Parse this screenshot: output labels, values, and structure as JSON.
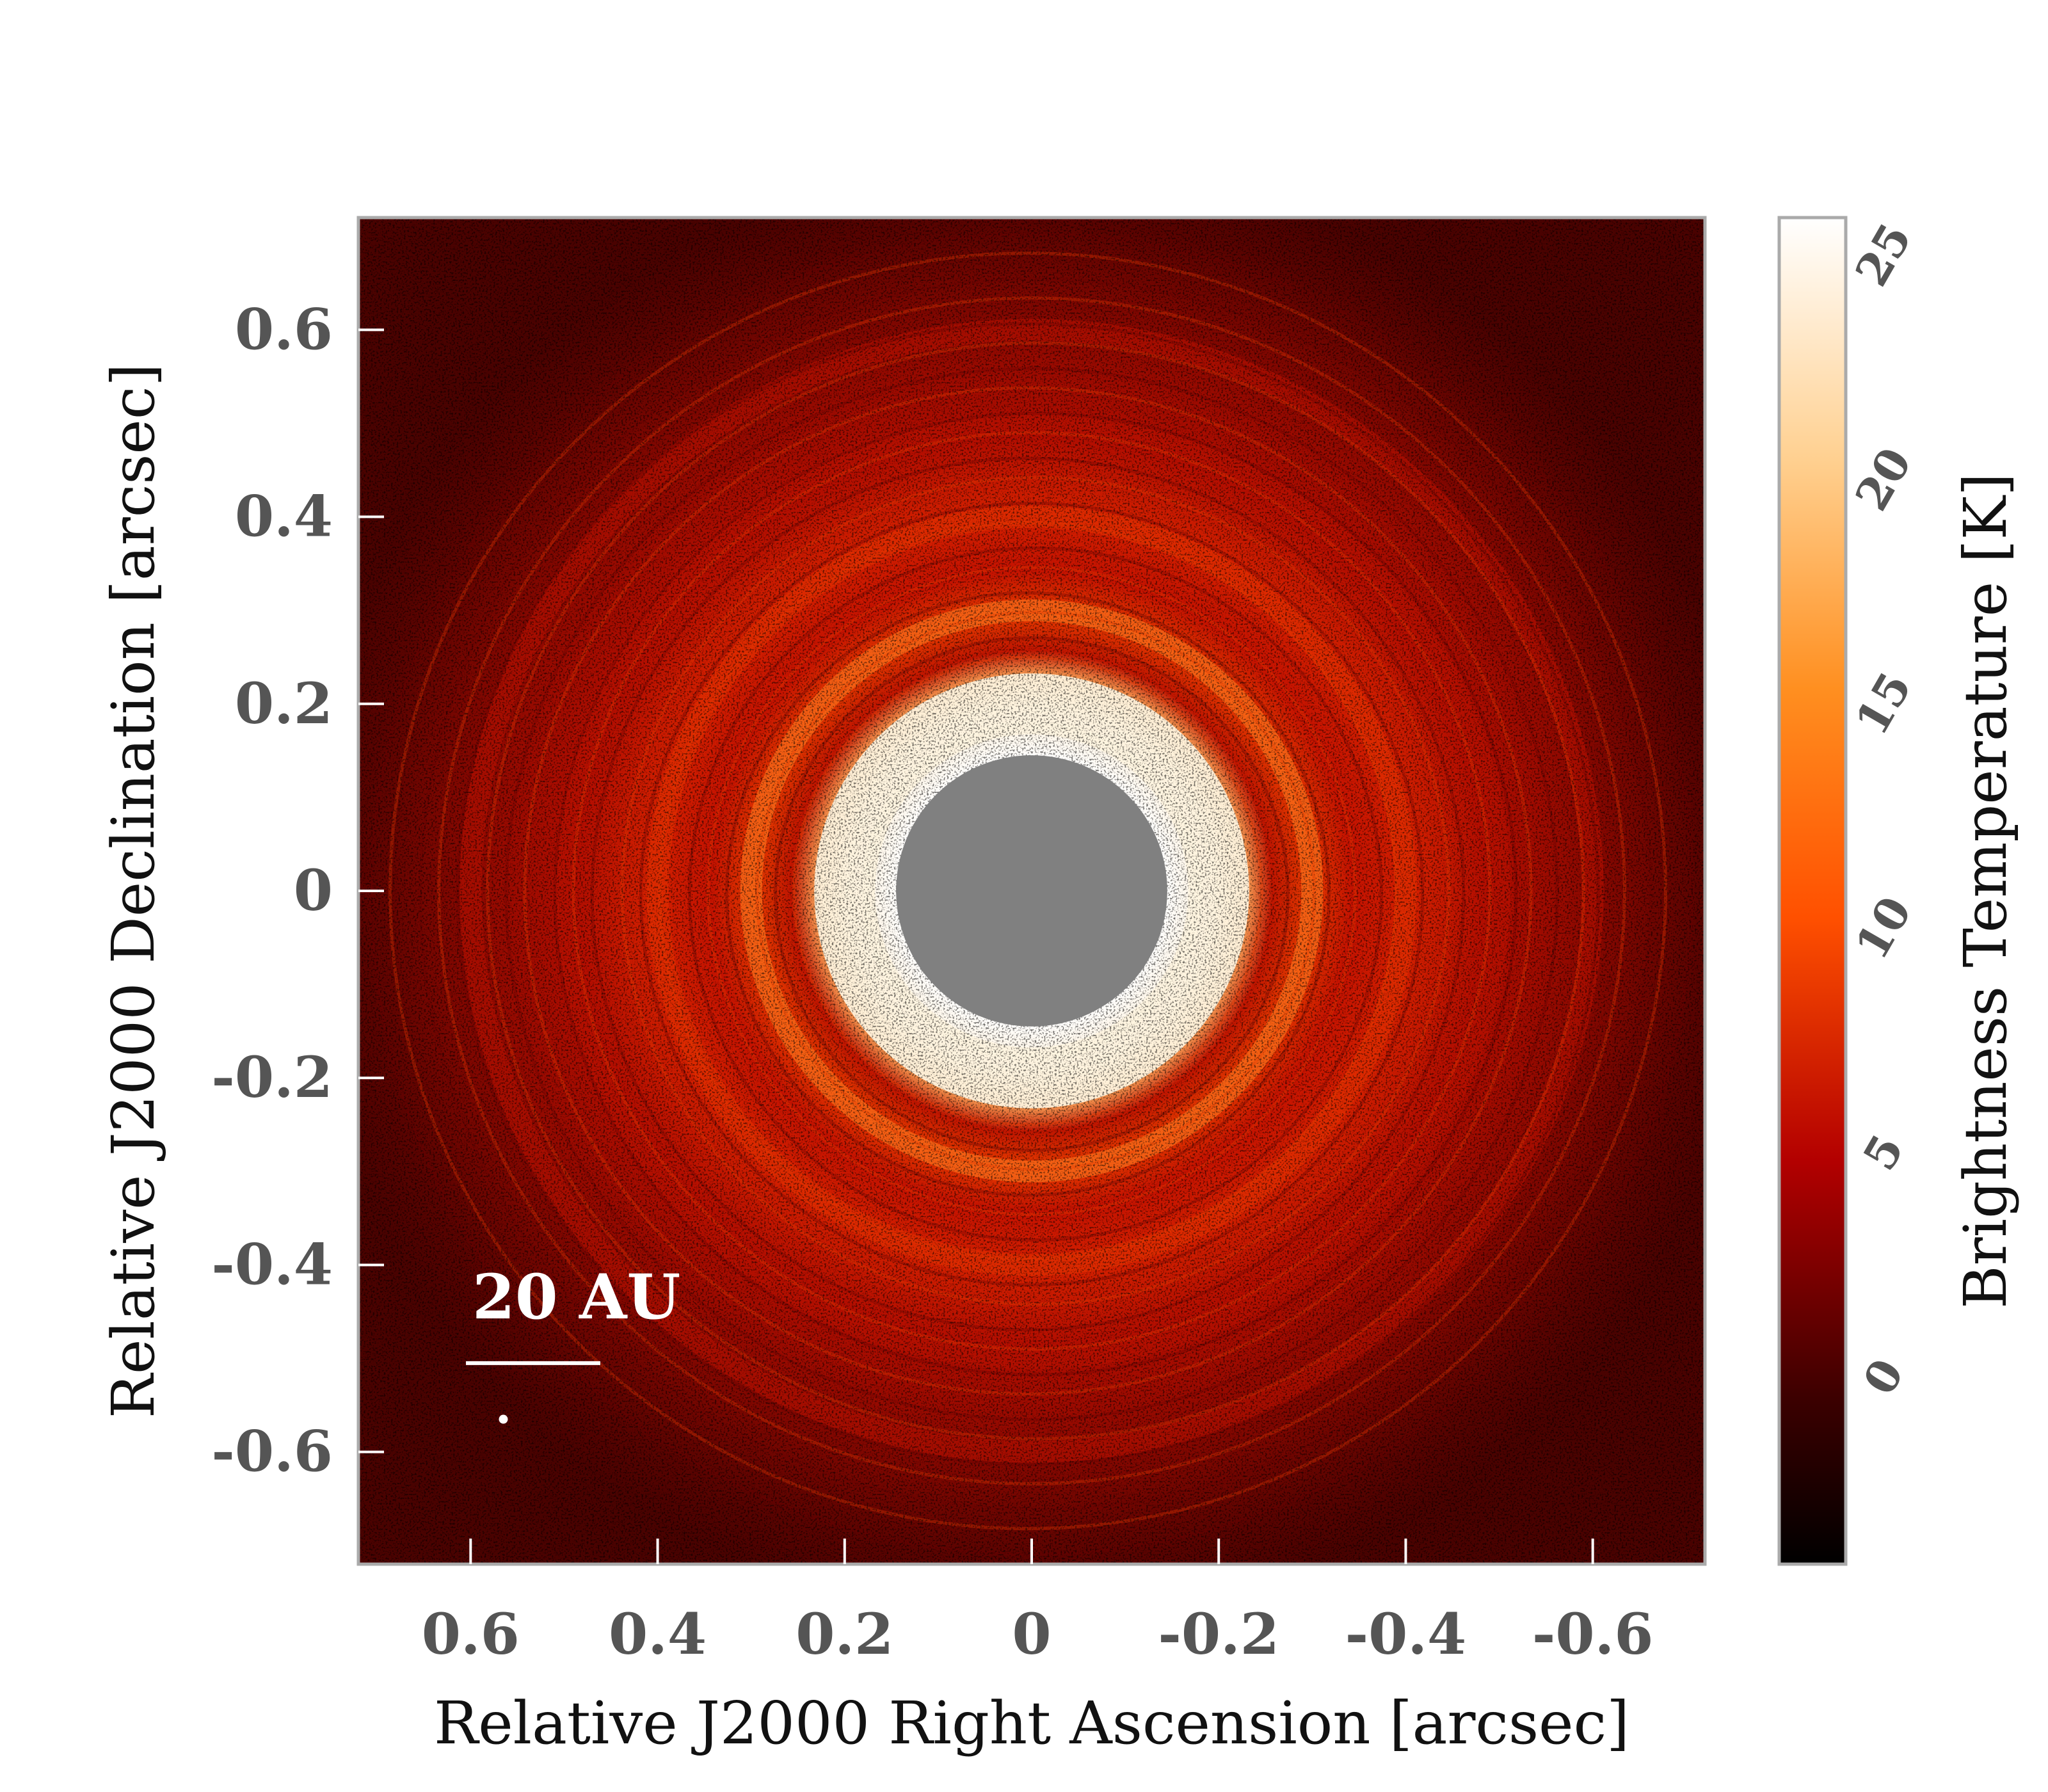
{
  "chart_data": {
    "type": "heatmap",
    "title": "",
    "xlabel": "Relative J2000 Right Ascension [arcsec]",
    "ylabel": "Relative J2000 Declination [arcsec]",
    "xlim": [
      0.72,
      -0.72
    ],
    "ylim": [
      -0.72,
      0.72
    ],
    "x_ticks": [
      0.6,
      0.4,
      0.2,
      0,
      -0.2,
      -0.4,
      -0.6
    ],
    "x_tick_labels": [
      "0.6",
      "0.4",
      "0.2",
      "0",
      "-0.2",
      "-0.4",
      "-0.6"
    ],
    "y_ticks": [
      0.6,
      0.4,
      0.2,
      0,
      -0.2,
      -0.4,
      -0.6
    ],
    "y_tick_labels": [
      "0.6",
      "0.4",
      "0.2",
      "0",
      "-0.2",
      "-0.4",
      "-0.6"
    ],
    "grid": false,
    "colorbar": {
      "label": "Brightness Temperature [K]",
      "ticks": [
        0,
        5,
        10,
        15,
        20,
        25
      ],
      "tick_labels": [
        "0",
        "5",
        "10",
        "15",
        "20",
        "25"
      ],
      "range": [
        -4,
        26
      ],
      "colormap": "gist_heat",
      "stops": [
        "#000000",
        "#5a0000",
        "#c00000",
        "#ff5a00",
        "#ff9a30",
        "#ffd9a0",
        "#ffffff"
      ]
    },
    "masked_center_radius_arcsec": 0.145,
    "mask_color": "#808080",
    "rings_arcsec": [
      {
        "r": 0.2,
        "peak_K": 24
      },
      {
        "r": 0.3,
        "peak_K": 12
      },
      {
        "r": 0.4,
        "peak_K": 8
      },
      {
        "r": 0.5,
        "peak_K": 6
      },
      {
        "r": 0.6,
        "peak_K": 4
      }
    ],
    "annotations": [
      {
        "text": "20 AU",
        "meaning": "scale bar"
      }
    ]
  }
}
